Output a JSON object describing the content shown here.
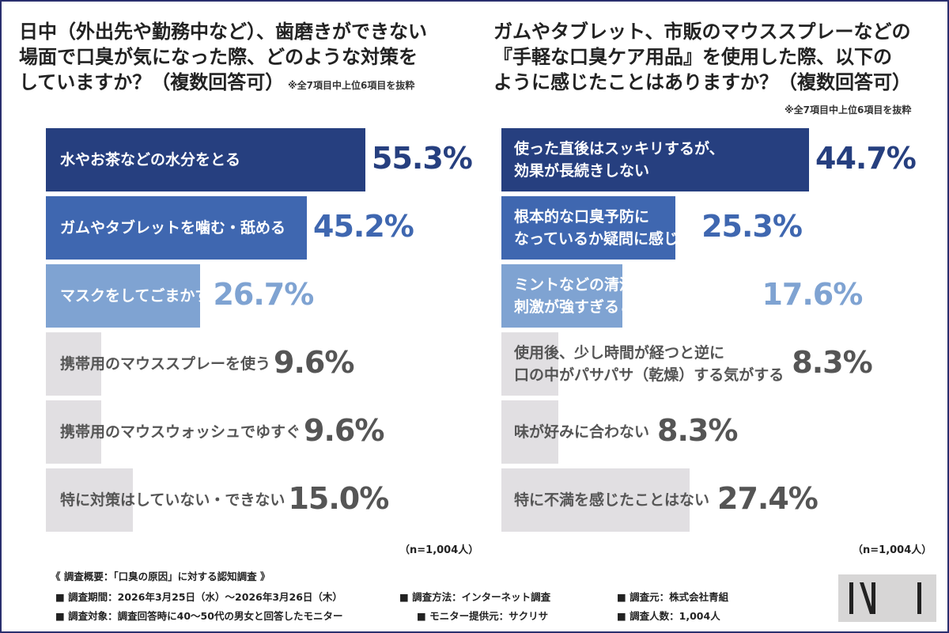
{
  "chart_data": [
    {
      "type": "bar",
      "title": "日中（外出先や勤務中など）、歯磨きができない\n場面で口臭が気になった際、どのような対策を\nしていますか？（複数回答可）",
      "note": "※全7項目中上位6項目を抜粋",
      "categories": [
        "水やお茶などの水分をとる",
        "ガムやタブレットを噛む・舐める",
        "マスクをしてごまかす",
        "携帯用のマウススプレーを使う",
        "携帯用のマウスウォッシュでゆすぐ",
        "特に対策はしていない・できない"
      ],
      "values": [
        55.3,
        45.2,
        26.7,
        9.6,
        9.6,
        15.0
      ],
      "value_labels": [
        "55.3%",
        "45.2%",
        "26.7%",
        "9.6%",
        "9.6%",
        "15.0%"
      ],
      "n_label": "（n=1,004人）"
    },
    {
      "type": "bar",
      "title": "ガムやタブレット、市販のマウススプレーなどの\n『手軽な口臭ケア用品』を使用した際、以下の\nように感じたことはありますか？（複数回答可）",
      "note": "※全7項目中上位6項目を抜粋",
      "categories": [
        "使った直後はスッキリするが、\n効果が長続きしない",
        "根本的な口臭予防に\nなっているか疑問に感じる",
        "ミントなどの清涼感やアルコールの\n刺激が強すぎると感じる",
        "使用後、少し時間が経つと逆に\n口の中がパサパサ（乾燥）する気がする",
        "味が好みに合わない",
        "特に不満を感じたことはない"
      ],
      "values": [
        44.7,
        25.3,
        17.6,
        8.3,
        8.3,
        27.4
      ],
      "value_labels": [
        "44.7%",
        "25.3%",
        "17.6%",
        "8.3%",
        "8.3%",
        "27.4%"
      ],
      "n_label": "（n=1,004人）"
    }
  ],
  "colors": {
    "tier1": "#263f7f",
    "tier2": "#3f67b0",
    "tier3": "#7fa3d2",
    "gray": "#e1dfe2",
    "gray_text": "#555555",
    "frame": "#2a2f6e"
  },
  "footer": {
    "heading": "《 調査概要：「口臭の原因」に対する認知調査 》",
    "period": "■ 調査期間：2026年3月25日（水）〜2026年3月26日（木）",
    "method": "■ 調査方法：インターネット調査",
    "source": "■ 調査元：株式会社青組",
    "target": "■ 調査対象：調査回答時に40〜50代の男女と回答したモニター",
    "provider": "■ モニター提供元：サクリサ",
    "count": "■ 調査人数：1,004人"
  }
}
